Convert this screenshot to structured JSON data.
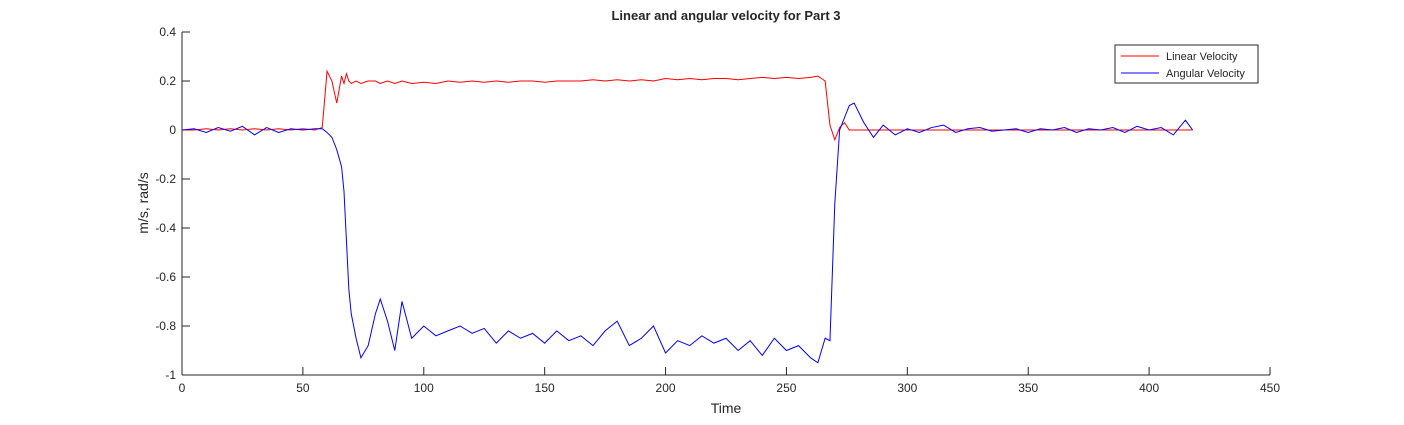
{
  "chart_data": {
    "type": "line",
    "title": "Linear and angular velocity for Part 3",
    "x_label": "Time",
    "y_label": "m/s, rad/s",
    "xlim": [
      0,
      450
    ],
    "xticks": [
      0,
      50,
      100,
      150,
      200,
      250,
      300,
      350,
      400,
      450
    ],
    "ylim": [
      -1,
      0.4
    ],
    "yticks": [
      0.4,
      0.2,
      0,
      -0.2,
      -0.4,
      -0.6,
      -0.8,
      -1
    ],
    "legend": "top-right",
    "x": [
      0,
      5,
      10,
      15,
      20,
      25,
      30,
      35,
      40,
      45,
      50,
      55,
      58,
      60,
      62,
      64,
      66,
      67,
      68,
      69,
      70,
      72,
      74,
      77,
      80,
      82,
      85,
      88,
      91,
      95,
      100,
      105,
      110,
      115,
      120,
      125,
      130,
      135,
      140,
      145,
      150,
      155,
      160,
      165,
      170,
      175,
      180,
      185,
      190,
      195,
      200,
      205,
      210,
      215,
      220,
      225,
      230,
      235,
      240,
      245,
      250,
      255,
      260,
      263,
      266,
      268,
      270,
      272,
      274,
      276,
      278,
      282,
      286,
      290,
      295,
      300,
      305,
      310,
      315,
      320,
      325,
      330,
      335,
      340,
      345,
      350,
      355,
      360,
      365,
      370,
      375,
      380,
      385,
      390,
      395,
      400,
      405,
      410,
      415,
      418
    ],
    "series": [
      {
        "name": "Linear Velocity",
        "color": "#ff0000",
        "values": [
          0,
          0,
          0.005,
          0,
          0.005,
          0,
          0.005,
          0,
          0.005,
          0,
          0.005,
          0,
          0.01,
          0.24,
          0.2,
          0.11,
          0.22,
          0.19,
          0.23,
          0.2,
          0.19,
          0.2,
          0.19,
          0.2,
          0.2,
          0.19,
          0.2,
          0.19,
          0.2,
          0.19,
          0.195,
          0.19,
          0.2,
          0.195,
          0.2,
          0.195,
          0.2,
          0.195,
          0.2,
          0.2,
          0.195,
          0.2,
          0.2,
          0.2,
          0.205,
          0.2,
          0.205,
          0.2,
          0.205,
          0.2,
          0.21,
          0.205,
          0.21,
          0.205,
          0.21,
          0.21,
          0.205,
          0.21,
          0.215,
          0.21,
          0.215,
          0.21,
          0.215,
          0.22,
          0.2,
          0.02,
          -0.04,
          0.01,
          0.03,
          0,
          0,
          0,
          0,
          0,
          0,
          0,
          0,
          0,
          0,
          0,
          0,
          0,
          0,
          0,
          0,
          0,
          0,
          0,
          0,
          0,
          0,
          0,
          0,
          0,
          0,
          0,
          0,
          0,
          0,
          0
        ]
      },
      {
        "name": "Angular Velocity",
        "color": "#0000ff",
        "values": [
          0,
          0.005,
          -0.01,
          0.01,
          -0.005,
          0.015,
          -0.02,
          0.01,
          -0.01,
          0.005,
          0,
          0.005,
          0.005,
          -0.01,
          -0.03,
          -0.08,
          -0.15,
          -0.25,
          -0.45,
          -0.65,
          -0.75,
          -0.85,
          -0.93,
          -0.88,
          -0.75,
          -0.69,
          -0.78,
          -0.9,
          -0.7,
          -0.85,
          -0.8,
          -0.84,
          -0.82,
          -0.8,
          -0.83,
          -0.81,
          -0.87,
          -0.82,
          -0.85,
          -0.83,
          -0.87,
          -0.82,
          -0.86,
          -0.84,
          -0.88,
          -0.82,
          -0.78,
          -0.88,
          -0.85,
          -0.8,
          -0.91,
          -0.86,
          -0.88,
          -0.84,
          -0.87,
          -0.85,
          -0.9,
          -0.86,
          -0.92,
          -0.85,
          -0.9,
          -0.88,
          -0.93,
          -0.95,
          -0.85,
          -0.86,
          -0.3,
          0,
          0.05,
          0.1,
          0.11,
          0.03,
          -0.03,
          0.02,
          -0.02,
          0.005,
          -0.01,
          0.01,
          0.02,
          -0.01,
          0.005,
          0.01,
          -0.005,
          0,
          0.005,
          -0.01,
          0.005,
          0,
          0.01,
          -0.01,
          0.005,
          0,
          0.01,
          -0.01,
          0.015,
          0,
          0.01,
          -0.02,
          0.04,
          0
        ]
      }
    ]
  }
}
